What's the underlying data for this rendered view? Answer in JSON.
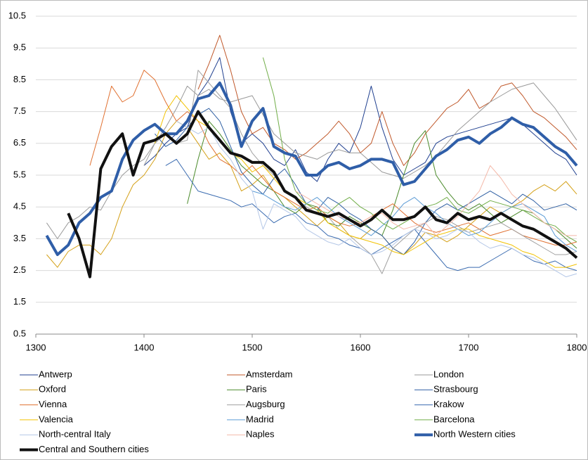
{
  "chart_data": {
    "type": "line",
    "x": [
      1310,
      1320,
      1330,
      1340,
      1350,
      1360,
      1370,
      1380,
      1390,
      1400,
      1410,
      1420,
      1430,
      1440,
      1450,
      1460,
      1470,
      1480,
      1490,
      1500,
      1510,
      1520,
      1530,
      1540,
      1550,
      1560,
      1570,
      1580,
      1590,
      1600,
      1610,
      1620,
      1630,
      1640,
      1650,
      1660,
      1670,
      1680,
      1690,
      1700,
      1710,
      1720,
      1730,
      1740,
      1750,
      1760,
      1770,
      1780,
      1790,
      1800
    ],
    "xlim": [
      1300,
      1800
    ],
    "xticks": [
      1300,
      1400,
      1500,
      1600,
      1700,
      1800
    ],
    "ylim": [
      0.5,
      10.5
    ],
    "yticks": [
      0.5,
      1.5,
      2.5,
      3.5,
      4.5,
      5.5,
      6.5,
      7.5,
      8.5,
      9.5,
      10.5
    ],
    "grid": true,
    "series": [
      {
        "name": "Antwerp",
        "color": "#1f3f8f",
        "width": 1,
        "values": [
          null,
          null,
          null,
          null,
          null,
          null,
          null,
          null,
          null,
          5.8,
          6.1,
          6.5,
          6.8,
          7.0,
          8.0,
          8.5,
          9.2,
          7.5,
          6.5,
          6.8,
          6.5,
          6.0,
          5.8,
          6.3,
          5.6,
          5.3,
          6.0,
          6.5,
          6.2,
          7.0,
          8.3,
          7.0,
          6.0,
          5.5,
          5.7,
          5.9,
          6.5,
          6.7,
          6.8,
          6.9,
          7.0,
          7.1,
          7.2,
          7.3,
          7.1,
          6.8,
          6.5,
          6.2,
          6.0,
          5.5
        ]
      },
      {
        "name": "Amsterdam",
        "color": "#c0582a",
        "width": 1,
        "values": [
          null,
          null,
          null,
          null,
          null,
          null,
          null,
          null,
          null,
          null,
          null,
          null,
          null,
          null,
          8.2,
          9.0,
          9.9,
          8.8,
          7.5,
          6.8,
          7.0,
          6.5,
          6.3,
          6.0,
          6.2,
          6.5,
          6.8,
          7.2,
          6.8,
          6.2,
          6.5,
          7.5,
          6.5,
          5.8,
          6.2,
          6.8,
          7.2,
          7.6,
          7.8,
          8.2,
          7.6,
          7.8,
          8.3,
          8.4,
          8.0,
          7.5,
          7.3,
          7.0,
          6.7,
          6.3
        ]
      },
      {
        "name": "London",
        "color": "#999999",
        "width": 1,
        "values": [
          4.0,
          3.5,
          4.0,
          4.2,
          4.5,
          4.4,
          5.0,
          5.5,
          5.8,
          6.0,
          6.5,
          7.0,
          7.6,
          8.3,
          8.0,
          8.2,
          7.9,
          7.8,
          7.9,
          8.0,
          7.4,
          6.8,
          6.5,
          6.2,
          6.1,
          6.0,
          6.2,
          6.3,
          6.2,
          6.2,
          5.9,
          5.6,
          5.5,
          5.4,
          5.6,
          5.8,
          6.1,
          6.5,
          6.9,
          7.2,
          7.5,
          7.8,
          8.0,
          8.2,
          8.3,
          8.4,
          8.0,
          7.6,
          7.1,
          6.6
        ]
      },
      {
        "name": "Oxford",
        "color": "#d4a017",
        "width": 1,
        "values": [
          3.0,
          2.6,
          3.1,
          3.3,
          3.3,
          3.0,
          3.5,
          4.5,
          5.2,
          5.5,
          6.0,
          6.8,
          7.2,
          7.0,
          6.5,
          6.0,
          6.2,
          5.8,
          5.0,
          5.2,
          5.5,
          5.0,
          4.8,
          4.5,
          4.2,
          3.9,
          4.2,
          4.0,
          3.6,
          3.5,
          3.8,
          3.6,
          3.2,
          3.0,
          3.3,
          3.7,
          3.6,
          3.4,
          3.6,
          3.9,
          4.2,
          4.5,
          4.3,
          4.5,
          4.7,
          5.0,
          5.2,
          5.0,
          5.3,
          4.9
        ]
      },
      {
        "name": "Paris",
        "color": "#4a8a2a",
        "width": 1,
        "values": [
          null,
          null,
          null,
          null,
          null,
          null,
          null,
          null,
          null,
          null,
          null,
          null,
          null,
          4.6,
          6.0,
          7.2,
          6.8,
          6.3,
          5.8,
          5.5,
          5.2,
          5.0,
          4.5,
          4.3,
          4.6,
          4.5,
          4.0,
          3.9,
          4.2,
          4.0,
          3.8,
          3.6,
          4.4,
          5.5,
          6.5,
          6.9,
          5.5,
          5.0,
          4.6,
          4.4,
          4.6,
          4.3,
          4.0,
          4.2,
          4.4,
          4.3,
          4.0,
          3.8,
          3.5,
          3.2
        ]
      },
      {
        "name": "Strasbourg",
        "color": "#2e5fa3",
        "width": 1,
        "values": [
          null,
          null,
          null,
          null,
          null,
          null,
          null,
          null,
          null,
          null,
          6.8,
          6.4,
          6.6,
          7.0,
          7.4,
          7.6,
          7.2,
          6.4,
          5.6,
          5.2,
          4.9,
          5.4,
          5.7,
          5.2,
          4.6,
          4.4,
          4.8,
          4.6,
          4.3,
          4.1,
          3.8,
          3.6,
          3.2,
          3.0,
          3.4,
          4.0,
          4.4,
          4.6,
          4.4,
          4.6,
          4.8,
          5.0,
          4.8,
          4.6,
          4.9,
          4.7,
          4.4,
          4.5,
          4.6,
          4.4
        ]
      },
      {
        "name": "Vienna",
        "color": "#e07030",
        "width": 1,
        "values": [
          null,
          null,
          null,
          null,
          5.8,
          7.0,
          8.3,
          7.8,
          8.0,
          8.8,
          8.5,
          7.8,
          7.2,
          7.5,
          7.2,
          6.5,
          6.0,
          5.8,
          5.5,
          5.8,
          5.4,
          5.0,
          4.8,
          4.6,
          4.4,
          4.5,
          4.2,
          4.0,
          3.9,
          4.0,
          4.2,
          4.4,
          4.6,
          4.3,
          4.0,
          3.8,
          3.7,
          3.8,
          3.9,
          4.0,
          3.8,
          3.6,
          3.7,
          3.8,
          3.6,
          3.5,
          3.4,
          3.3,
          3.3,
          3.4
        ]
      },
      {
        "name": "Augsburg",
        "color": "#a0a0a0",
        "width": 1,
        "values": [
          null,
          null,
          null,
          null,
          null,
          null,
          null,
          null,
          null,
          5.8,
          6.5,
          6.8,
          6.5,
          6.6,
          8.8,
          8.4,
          8.0,
          7.6,
          6.8,
          6.2,
          5.8,
          5.5,
          5.0,
          4.8,
          4.5,
          4.3,
          4.2,
          3.8,
          3.6,
          3.3,
          3.0,
          2.4,
          3.2,
          3.5,
          3.8,
          4.0,
          4.2,
          4.1,
          3.9,
          3.7,
          3.8,
          3.9,
          4.0,
          3.8,
          3.6,
          3.4,
          3.2,
          3.0,
          3.0,
          3.1
        ]
      },
      {
        "name": "Krakow",
        "color": "#3a6bb0",
        "width": 1,
        "values": [
          null,
          null,
          null,
          null,
          null,
          null,
          null,
          null,
          null,
          null,
          null,
          5.8,
          6.0,
          5.5,
          5.0,
          4.9,
          4.8,
          4.7,
          4.5,
          4.6,
          4.3,
          4.0,
          4.2,
          4.3,
          4.0,
          3.9,
          3.6,
          3.5,
          3.3,
          3.2,
          3.0,
          3.2,
          3.4,
          3.6,
          3.8,
          3.4,
          3.0,
          2.6,
          2.5,
          2.6,
          2.6,
          2.8,
          3.0,
          3.2,
          3.0,
          2.8,
          2.7,
          2.8,
          2.6,
          2.5
        ]
      },
      {
        "name": "Valencia",
        "color": "#f2c200",
        "width": 1,
        "values": [
          null,
          null,
          null,
          null,
          null,
          null,
          null,
          null,
          null,
          null,
          6.5,
          7.5,
          8.0,
          7.6,
          7.2,
          7.0,
          6.6,
          6.2,
          6.0,
          5.6,
          5.8,
          5.4,
          5.0,
          4.8,
          4.6,
          4.4,
          4.0,
          3.8,
          3.6,
          3.5,
          3.4,
          3.3,
          3.1,
          3.0,
          3.2,
          3.4,
          3.6,
          3.7,
          3.8,
          3.8,
          3.6,
          3.5,
          3.4,
          3.3,
          3.1,
          3.0,
          2.8,
          2.6,
          2.6,
          2.7
        ]
      },
      {
        "name": "Madrid",
        "color": "#5b9bd5",
        "width": 1,
        "values": [
          null,
          null,
          null,
          null,
          null,
          null,
          null,
          null,
          null,
          null,
          null,
          null,
          null,
          null,
          null,
          null,
          null,
          null,
          null,
          5.0,
          4.9,
          4.7,
          4.5,
          4.4,
          4.6,
          4.8,
          4.5,
          4.2,
          4.0,
          3.8,
          3.6,
          3.9,
          4.2,
          4.6,
          4.8,
          4.5,
          4.3,
          4.0,
          3.8,
          3.6,
          3.7,
          4.0,
          4.3,
          4.5,
          4.6,
          4.4,
          4.2,
          3.6,
          3.3,
          3.1
        ]
      },
      {
        "name": "Barcelona",
        "color": "#70ad47",
        "width": 1,
        "values": [
          null,
          null,
          null,
          null,
          null,
          null,
          null,
          null,
          null,
          null,
          null,
          null,
          null,
          null,
          null,
          null,
          null,
          null,
          null,
          null,
          9.2,
          8.0,
          6.0,
          5.0,
          4.6,
          4.4,
          4.3,
          4.6,
          4.8,
          4.5,
          4.3,
          4.0,
          3.8,
          4.0,
          4.2,
          4.5,
          4.6,
          4.8,
          4.4,
          4.3,
          4.5,
          4.7,
          4.6,
          4.5,
          4.4,
          4.2,
          4.0,
          3.9,
          3.6,
          3.4
        ]
      },
      {
        "name": "North-central Italy",
        "color": "#b4c7e7",
        "width": 1,
        "values": [
          null,
          null,
          null,
          null,
          null,
          null,
          null,
          null,
          null,
          null,
          null,
          null,
          7.2,
          7.0,
          6.8,
          7.0,
          6.4,
          6.0,
          5.4,
          5.0,
          3.8,
          4.6,
          4.4,
          4.2,
          3.8,
          3.6,
          3.4,
          3.3,
          3.5,
          3.2,
          3.0,
          3.1,
          3.3,
          3.6,
          3.8,
          3.7,
          3.5,
          3.6,
          3.8,
          3.7,
          3.4,
          3.2,
          3.3,
          3.2,
          3.0,
          2.9,
          2.7,
          2.5,
          2.3,
          2.4
        ]
      },
      {
        "name": "Naples",
        "color": "#f4b8a8",
        "width": 1,
        "values": [
          null,
          null,
          null,
          null,
          null,
          null,
          null,
          null,
          null,
          null,
          null,
          null,
          null,
          null,
          null,
          null,
          null,
          null,
          null,
          null,
          null,
          null,
          null,
          5.0,
          4.8,
          4.6,
          4.4,
          4.2,
          4.1,
          4.0,
          4.2,
          4.3,
          4.0,
          3.8,
          3.9,
          4.0,
          3.6,
          3.9,
          4.2,
          4.6,
          5.0,
          5.8,
          5.4,
          4.9,
          4.6,
          4.3,
          4.0,
          3.8,
          3.6,
          3.6
        ]
      },
      {
        "name": "North Western cities",
        "color": "#2f5ea8",
        "width": 4,
        "values": [
          3.6,
          3.0,
          3.3,
          4.0,
          4.3,
          4.8,
          5.0,
          6.0,
          6.6,
          6.9,
          7.1,
          6.8,
          6.8,
          7.2,
          7.9,
          8.0,
          8.4,
          7.7,
          6.4,
          7.2,
          7.6,
          6.4,
          6.2,
          6.1,
          5.5,
          5.5,
          5.8,
          5.9,
          5.7,
          5.8,
          6.0,
          6.0,
          5.9,
          5.2,
          5.3,
          5.7,
          6.1,
          6.3,
          6.6,
          6.7,
          6.5,
          6.8,
          7.0,
          7.3,
          7.1,
          7.0,
          6.7,
          6.4,
          6.2,
          5.8
        ]
      },
      {
        "name": "Central and Southern cities",
        "color": "#111111",
        "width": 4,
        "values": [
          null,
          null,
          4.3,
          3.5,
          2.3,
          5.7,
          6.4,
          6.8,
          5.5,
          6.5,
          6.6,
          6.8,
          6.5,
          6.8,
          7.5,
          7.0,
          6.6,
          6.2,
          6.1,
          5.9,
          5.9,
          5.6,
          5.0,
          4.8,
          4.4,
          4.3,
          4.2,
          4.3,
          4.1,
          3.9,
          4.1,
          4.4,
          4.1,
          4.1,
          4.2,
          4.5,
          4.1,
          4.0,
          4.3,
          4.1,
          4.2,
          4.1,
          4.3,
          4.1,
          3.9,
          3.8,
          3.6,
          3.4,
          3.2,
          2.9
        ]
      }
    ]
  }
}
